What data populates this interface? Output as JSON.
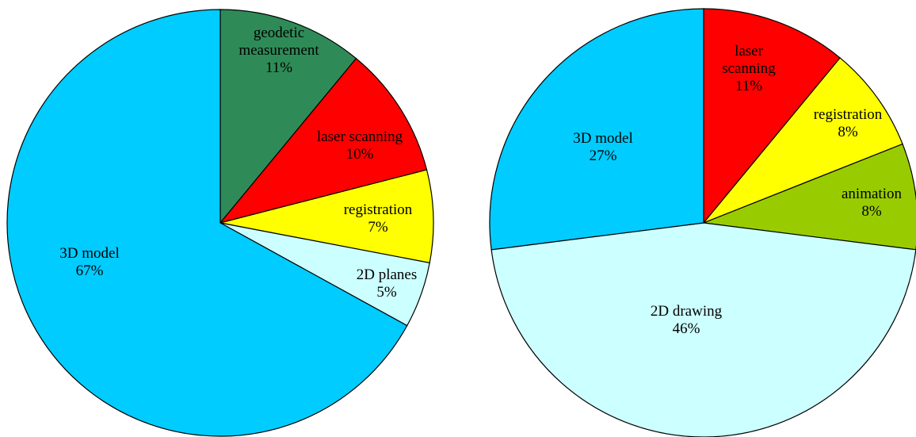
{
  "chart_data": [
    {
      "type": "pie",
      "title": "",
      "slices": [
        {
          "name": "geodetic measurement",
          "label_lines": [
            "geodetic",
            "measurement"
          ],
          "value": 11,
          "pct_label": "11%",
          "color": "#2e8b57"
        },
        {
          "name": "laser scanning",
          "label_lines": [
            "laser scanning"
          ],
          "value": 10,
          "pct_label": "10%",
          "color": "#ff0000"
        },
        {
          "name": "registration",
          "label_lines": [
            "registration"
          ],
          "value": 7,
          "pct_label": "7%",
          "color": "#ffff00"
        },
        {
          "name": "2D planes",
          "label_lines": [
            "2D planes"
          ],
          "value": 5,
          "pct_label": "5%",
          "color": "#ccffff"
        },
        {
          "name": "3D model",
          "label_lines": [
            "3D model"
          ],
          "value": 67,
          "pct_label": "67%",
          "color": "#00ccff"
        }
      ]
    },
    {
      "type": "pie",
      "title": "",
      "slices": [
        {
          "name": "laser scanning",
          "label_lines": [
            "laser",
            "scanning"
          ],
          "value": 11,
          "pct_label": "11%",
          "color": "#ff0000"
        },
        {
          "name": "registration",
          "label_lines": [
            "registration"
          ],
          "value": 8,
          "pct_label": "8%",
          "color": "#ffff00"
        },
        {
          "name": "animation",
          "label_lines": [
            "animation"
          ],
          "value": 8,
          "pct_label": "8%",
          "color": "#99cc00"
        },
        {
          "name": "2D drawing",
          "label_lines": [
            "2D drawing"
          ],
          "value": 46,
          "pct_label": "46%",
          "color": "#ccffff"
        },
        {
          "name": "3D model",
          "label_lines": [
            "3D model"
          ],
          "value": 27,
          "pct_label": "27%",
          "color": "#00ccff"
        }
      ]
    }
  ]
}
